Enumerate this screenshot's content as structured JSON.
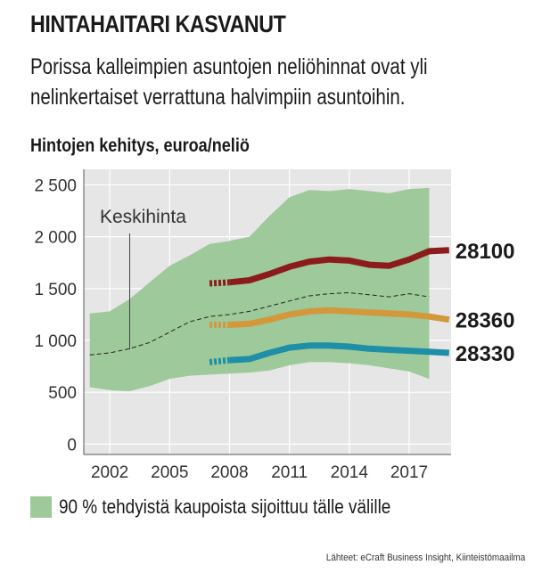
{
  "header": {
    "title": "HINTAHAITARI KASVANUT",
    "subtitle": "Porissa kalleimpien asuntojen neliöhinnat ovat yli nelinkertaiset verrattuna halvimpiin asuntoihin.",
    "chart_title": "Hintojen kehitys, euroa/neliö"
  },
  "legend": {
    "label": "90 % tehdyistä kaupoista sijoittuu tälle välille"
  },
  "source": "Lähteet: eCraft Business Insight, Kiinteistömaailma",
  "colors": {
    "band": "#9ec99a",
    "plot_bg": "#e6e6e6",
    "red": "#8c1c1c",
    "orange": "#d4983c",
    "blue": "#1e8fa6",
    "median": "#222222"
  },
  "chart_data": {
    "type": "area",
    "xlim": [
      2000.7,
      2019.1
    ],
    "ylim": [
      -100,
      2650
    ],
    "y_ticks": [
      0,
      500,
      1000,
      1500,
      2000,
      2500
    ],
    "y_tick_labels": [
      "0",
      "500",
      "1 000",
      "1 500",
      "2 000",
      "2 500"
    ],
    "x_ticks": [
      2002,
      2005,
      2008,
      2011,
      2014,
      2017
    ],
    "x_tick_labels": [
      "2002",
      "2005",
      "2008",
      "2011",
      "2014",
      "2017"
    ],
    "grid": true,
    "band": {
      "x": [
        2001,
        2002,
        2003,
        2004,
        2005,
        2006,
        2007,
        2008,
        2009,
        2010,
        2011,
        2012,
        2013,
        2014,
        2015,
        2016,
        2017,
        2018
      ],
      "low": [
        550,
        520,
        510,
        560,
        630,
        660,
        670,
        680,
        690,
        710,
        760,
        790,
        790,
        780,
        760,
        730,
        700,
        630
      ],
      "high": [
        1260,
        1280,
        1400,
        1560,
        1720,
        1820,
        1930,
        1960,
        2000,
        2200,
        2380,
        2450,
        2440,
        2460,
        2440,
        2420,
        2460,
        2470
      ]
    },
    "median": {
      "label": "Keskihinta",
      "x": [
        2001,
        2002,
        2003,
        2004,
        2005,
        2006,
        2007,
        2008,
        2009,
        2010,
        2011,
        2012,
        2013,
        2014,
        2015,
        2016,
        2017,
        2018
      ],
      "y": [
        860,
        880,
        920,
        980,
        1080,
        1180,
        1230,
        1250,
        1280,
        1330,
        1380,
        1430,
        1450,
        1460,
        1440,
        1420,
        1450,
        1420
      ]
    },
    "series": [
      {
        "name": "28100",
        "x": [
          2007,
          2008,
          2009,
          2010,
          2011,
          2012,
          2013,
          2014,
          2015,
          2016,
          2017,
          2018,
          2019
        ],
        "y": [
          1550,
          1560,
          1580,
          1640,
          1710,
          1760,
          1780,
          1770,
          1730,
          1720,
          1780,
          1860,
          1870
        ]
      },
      {
        "name": "28360",
        "x": [
          2007,
          2008,
          2009,
          2010,
          2011,
          2012,
          2013,
          2014,
          2015,
          2016,
          2017,
          2018,
          2019
        ],
        "y": [
          1150,
          1150,
          1160,
          1200,
          1250,
          1280,
          1290,
          1280,
          1270,
          1260,
          1250,
          1230,
          1200
        ]
      },
      {
        "name": "28330",
        "x": [
          2007,
          2008,
          2009,
          2010,
          2011,
          2012,
          2013,
          2014,
          2015,
          2016,
          2017,
          2018,
          2019
        ],
        "y": [
          790,
          810,
          820,
          880,
          930,
          950,
          950,
          940,
          920,
          910,
          900,
          890,
          880
        ]
      }
    ]
  }
}
